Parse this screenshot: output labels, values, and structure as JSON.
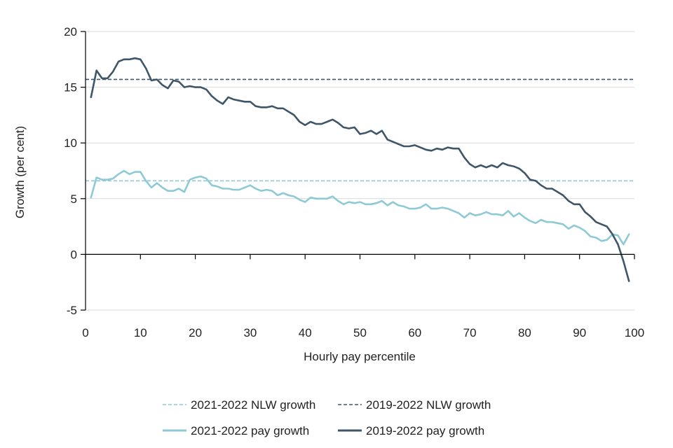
{
  "chart_data": {
    "type": "line",
    "title": "",
    "xlabel": "Hourly pay percentile",
    "ylabel": "Growth (per cent)",
    "xlim": [
      0,
      100
    ],
    "ylim": [
      -5,
      20
    ],
    "xticks": [
      0,
      10,
      20,
      30,
      40,
      50,
      60,
      70,
      80,
      90,
      100
    ],
    "yticks": [
      -5,
      0,
      5,
      10,
      15,
      20
    ],
    "grid": "horizontal",
    "legend_position": "bottom",
    "colors": {
      "light": "#8ecad6",
      "dark": "#3f5668"
    },
    "reference_lines": [
      {
        "name": "2021-2022 NLW growth",
        "value": 6.6,
        "style": "dashed",
        "color": "#8ecad6"
      },
      {
        "name": "2019-2022 NLW growth",
        "value": 15.7,
        "style": "dashed",
        "color": "#3f5668"
      }
    ],
    "series": [
      {
        "name": "2021-2022 pay growth",
        "color": "#8ecad6",
        "x": [
          1,
          2,
          3,
          4,
          5,
          6,
          7,
          8,
          9,
          10,
          11,
          12,
          13,
          14,
          15,
          16,
          17,
          18,
          19,
          20,
          21,
          22,
          23,
          24,
          25,
          26,
          27,
          28,
          29,
          30,
          31,
          32,
          33,
          34,
          35,
          36,
          37,
          38,
          39,
          40,
          41,
          42,
          43,
          44,
          45,
          46,
          47,
          48,
          49,
          50,
          51,
          52,
          53,
          54,
          55,
          56,
          57,
          58,
          59,
          60,
          61,
          62,
          63,
          64,
          65,
          66,
          67,
          68,
          69,
          70,
          71,
          72,
          73,
          74,
          75,
          76,
          77,
          78,
          79,
          80,
          81,
          82,
          83,
          84,
          85,
          86,
          87,
          88,
          89,
          90,
          91,
          92,
          93,
          94,
          95,
          96,
          97,
          98,
          99
        ],
        "values": [
          5.1,
          6.9,
          6.7,
          6.7,
          6.8,
          7.2,
          7.5,
          7.2,
          7.4,
          7.4,
          6.6,
          6.0,
          6.4,
          6.0,
          5.7,
          5.7,
          5.9,
          5.6,
          6.7,
          6.9,
          7.0,
          6.8,
          6.2,
          6.1,
          5.9,
          5.9,
          5.8,
          5.8,
          6.0,
          6.2,
          5.9,
          5.7,
          5.8,
          5.7,
          5.3,
          5.5,
          5.3,
          5.2,
          4.9,
          4.7,
          5.1,
          5.0,
          5.0,
          5.0,
          5.2,
          4.8,
          4.5,
          4.7,
          4.6,
          4.7,
          4.5,
          4.5,
          4.6,
          4.8,
          4.4,
          4.7,
          4.4,
          4.3,
          4.1,
          4.1,
          4.2,
          4.5,
          4.1,
          4.1,
          4.2,
          4.1,
          3.9,
          3.7,
          3.3,
          3.7,
          3.5,
          3.6,
          3.8,
          3.6,
          3.6,
          3.5,
          3.9,
          3.4,
          3.7,
          3.3,
          3.0,
          2.8,
          3.1,
          2.9,
          2.9,
          2.8,
          2.7,
          2.3,
          2.6,
          2.4,
          2.1,
          1.6,
          1.5,
          1.2,
          1.3,
          1.8,
          1.7,
          0.9,
          1.8
        ]
      },
      {
        "name": "2019-2022 pay growth",
        "color": "#3f5668",
        "x": [
          1,
          2,
          3,
          4,
          5,
          6,
          7,
          8,
          9,
          10,
          11,
          12,
          13,
          14,
          15,
          16,
          17,
          18,
          19,
          20,
          21,
          22,
          23,
          24,
          25,
          26,
          27,
          28,
          29,
          30,
          31,
          32,
          33,
          34,
          35,
          36,
          37,
          38,
          39,
          40,
          41,
          42,
          43,
          44,
          45,
          46,
          47,
          48,
          49,
          50,
          51,
          52,
          53,
          54,
          55,
          56,
          57,
          58,
          59,
          60,
          61,
          62,
          63,
          64,
          65,
          66,
          67,
          68,
          69,
          70,
          71,
          72,
          73,
          74,
          75,
          76,
          77,
          78,
          79,
          80,
          81,
          82,
          83,
          84,
          85,
          86,
          87,
          88,
          89,
          90,
          91,
          92,
          93,
          94,
          95,
          96,
          97,
          98,
          99
        ],
        "values": [
          14.1,
          16.5,
          15.8,
          15.8,
          16.4,
          17.3,
          17.5,
          17.5,
          17.6,
          17.5,
          16.7,
          15.6,
          15.7,
          15.2,
          14.9,
          15.6,
          15.5,
          15.0,
          15.1,
          15.0,
          15.0,
          14.8,
          14.2,
          13.8,
          13.5,
          14.1,
          13.9,
          13.8,
          13.7,
          13.7,
          13.3,
          13.2,
          13.2,
          13.3,
          13.1,
          13.1,
          12.8,
          12.5,
          11.9,
          11.6,
          11.9,
          11.7,
          11.7,
          11.9,
          12.1,
          11.8,
          11.4,
          11.3,
          11.4,
          10.8,
          10.9,
          11.1,
          10.8,
          11.1,
          10.3,
          10.1,
          9.9,
          9.7,
          9.7,
          9.8,
          9.6,
          9.4,
          9.3,
          9.5,
          9.4,
          9.6,
          9.5,
          9.5,
          8.7,
          8.1,
          7.8,
          8.0,
          7.8,
          8.0,
          7.8,
          8.2,
          8.0,
          7.9,
          7.7,
          7.3,
          6.7,
          6.6,
          6.2,
          5.9,
          5.9,
          5.6,
          5.3,
          4.8,
          4.5,
          4.5,
          3.8,
          3.4,
          2.9,
          2.7,
          2.5,
          1.8,
          0.9,
          -0.6,
          -2.4
        ]
      }
    ],
    "legend": [
      {
        "label": "2021-2022 NLW growth",
        "color": "#8ecad6",
        "style": "dashed"
      },
      {
        "label": "2019-2022 NLW growth",
        "color": "#3f5668",
        "style": "dashed"
      },
      {
        "label": "2021-2022 pay growth",
        "color": "#8ecad6",
        "style": "solid"
      },
      {
        "label": "2019-2022 pay growth",
        "color": "#3f5668",
        "style": "solid"
      }
    ]
  }
}
